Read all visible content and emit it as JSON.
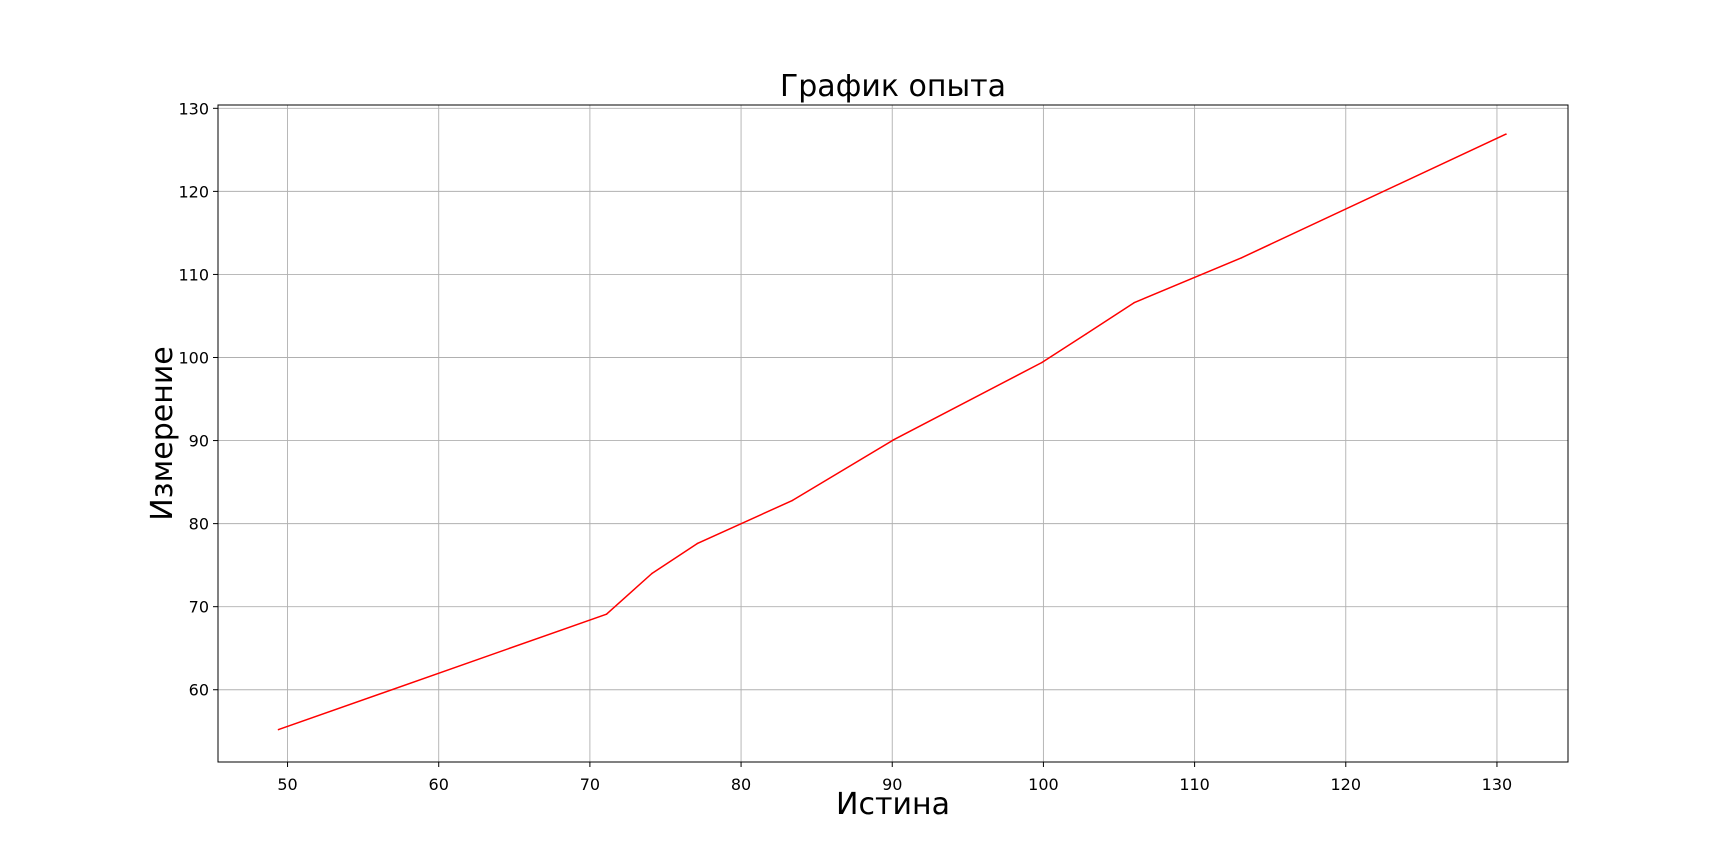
{
  "chart_data": {
    "type": "line",
    "title": "График опыта",
    "xlabel": "Истина",
    "ylabel": "Измерение",
    "xlim": [
      45.4,
      134.7
    ],
    "ylim": [
      51.3,
      130.4
    ],
    "xticks": [
      50,
      60,
      70,
      80,
      90,
      100,
      110,
      120,
      130
    ],
    "yticks": [
      60,
      70,
      80,
      90,
      100,
      110,
      120,
      130
    ],
    "grid": true,
    "legend": "none",
    "series": [
      {
        "color": "#ff0000",
        "x": [
          49.4,
          71.1,
          74.1,
          77.1,
          83.4,
          90.1,
          99.9,
          102.8,
          106.0,
          113.1,
          130.6
        ],
        "y": [
          55.2,
          69.1,
          74.0,
          77.6,
          82.8,
          90.1,
          99.4,
          102.8,
          106.6,
          112.0,
          126.9
        ]
      }
    ]
  }
}
